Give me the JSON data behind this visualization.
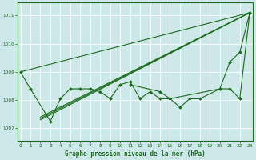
{
  "title": "Graphe pression niveau de la mer (hPa)",
  "background_color": "#cce8e8",
  "grid_color": "#ffffff",
  "line_color": "#1a6b1a",
  "xlim": [
    -0.3,
    23.3
  ],
  "ylim": [
    1006.55,
    1011.45
  ],
  "yticks": [
    1007,
    1008,
    1009,
    1010,
    1011
  ],
  "xticks": [
    0,
    1,
    2,
    3,
    4,
    5,
    6,
    7,
    8,
    9,
    10,
    11,
    12,
    13,
    14,
    15,
    16,
    17,
    18,
    19,
    20,
    21,
    22,
    23
  ],
  "line1_x": [
    0,
    1,
    3,
    4,
    5,
    6,
    7,
    8,
    9,
    10,
    11,
    12,
    13,
    14,
    15,
    16,
    17,
    18,
    20,
    21,
    22,
    23
  ],
  "line1_y": [
    1009.0,
    1008.4,
    1007.25,
    1008.05,
    1008.4,
    1008.4,
    1008.4,
    1008.3,
    1008.05,
    1008.55,
    1008.65,
    1008.05,
    1008.3,
    1008.05,
    1008.05,
    1007.75,
    1008.05,
    1008.05,
    1008.4,
    1008.4,
    1008.05,
    1011.1
  ],
  "line2_x": [
    0,
    23
  ],
  "line2_y": [
    1009.0,
    1011.1
  ],
  "line3_x": [
    2,
    23
  ],
  "line3_y": [
    1007.3,
    1011.1
  ],
  "line4_x": [
    2,
    23
  ],
  "line4_y": [
    1007.35,
    1011.1
  ],
  "line5_x": [
    2,
    23
  ],
  "line5_y": [
    1007.4,
    1011.1
  ],
  "line6_x": [
    11,
    14,
    15,
    20,
    21,
    22,
    23
  ],
  "line6_y": [
    1008.55,
    1008.3,
    1008.05,
    1008.4,
    1009.35,
    1009.7,
    1011.1
  ],
  "marker_x1": [
    0,
    1,
    3,
    4,
    5,
    6,
    7,
    8,
    9,
    10,
    11,
    12,
    13,
    14,
    15,
    16,
    17,
    18,
    20,
    21,
    22,
    23
  ],
  "marker_y1": [
    1009.0,
    1008.4,
    1007.25,
    1008.05,
    1008.4,
    1008.4,
    1008.4,
    1008.3,
    1008.05,
    1008.55,
    1008.65,
    1008.05,
    1008.3,
    1008.05,
    1008.05,
    1007.75,
    1008.05,
    1008.05,
    1008.4,
    1008.4,
    1008.05,
    1011.1
  ],
  "marker_x6": [
    11,
    14,
    15,
    20,
    21,
    22,
    23
  ],
  "marker_y6": [
    1008.55,
    1008.3,
    1008.05,
    1008.4,
    1009.35,
    1009.7,
    1011.1
  ]
}
